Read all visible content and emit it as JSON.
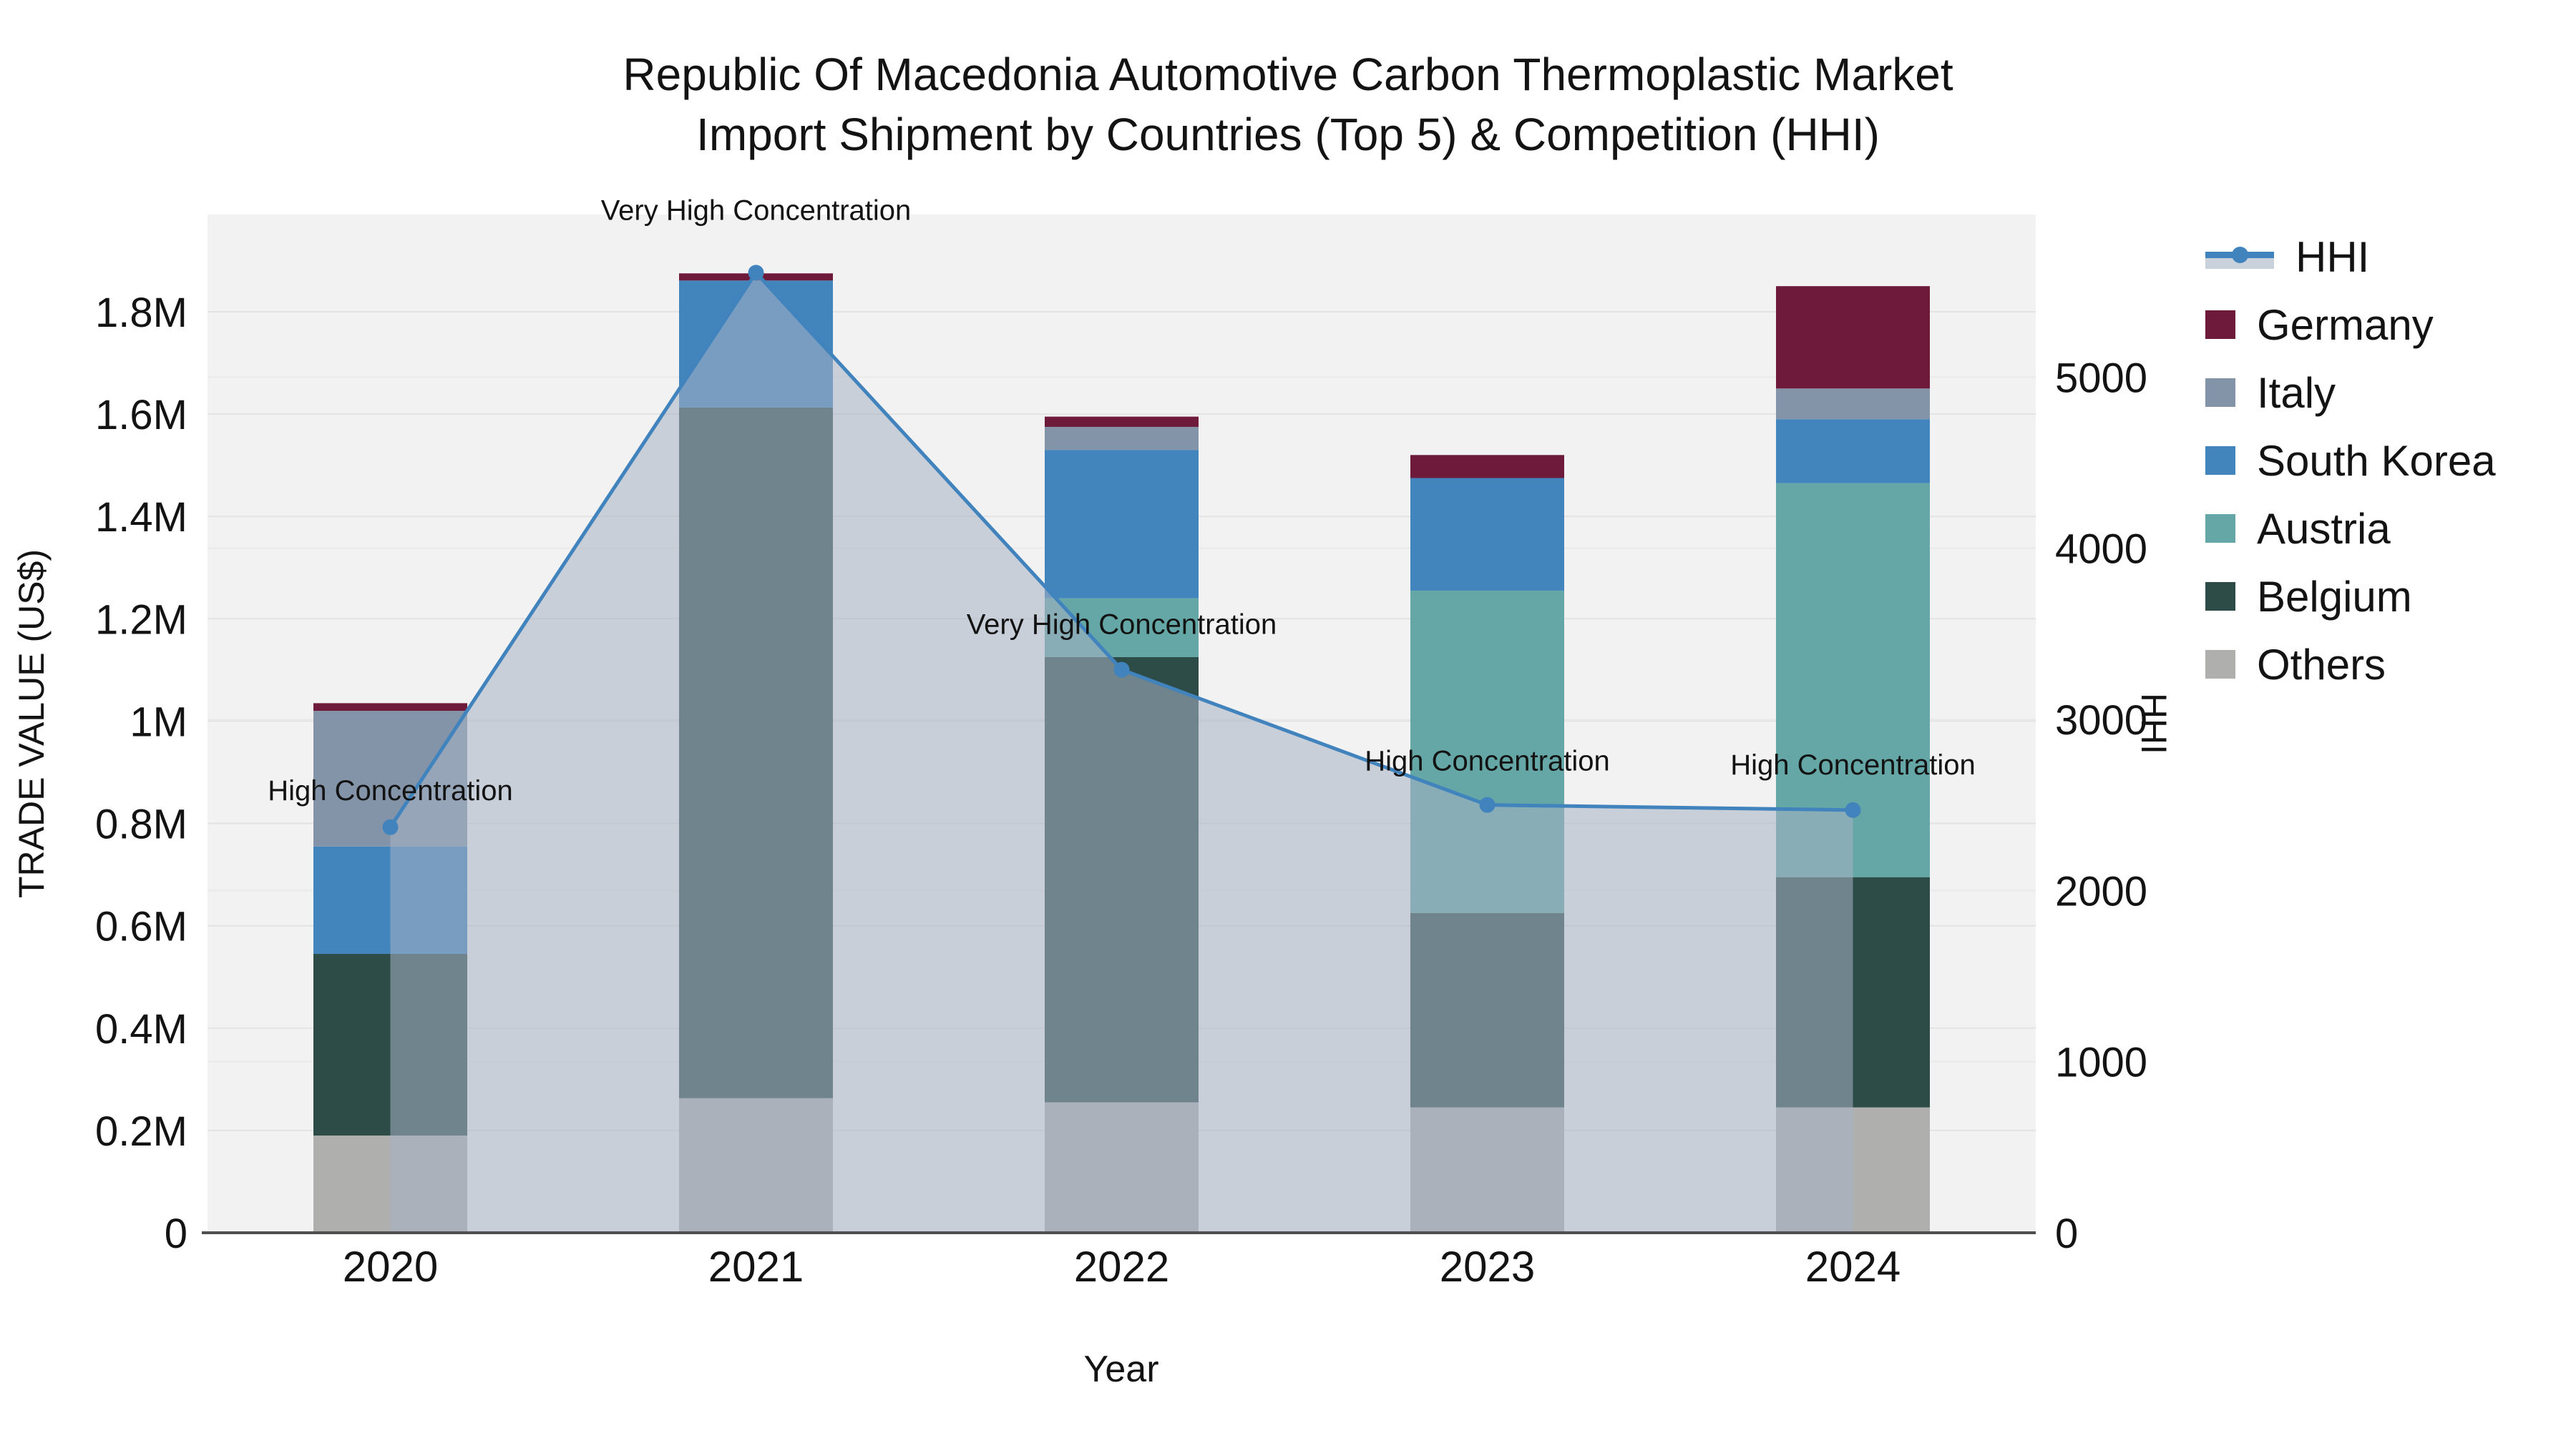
{
  "title": {
    "line1": "Republic Of Macedonia Automotive Carbon Thermoplastic Market",
    "line2": "Import Shipment by Countries (Top 5) & Competition (HHI)"
  },
  "axes": {
    "x": {
      "title": "Year",
      "categories": [
        "2020",
        "2021",
        "2022",
        "2023",
        "2024"
      ]
    },
    "y_left": {
      "title": "TRADE VALUE (US$)",
      "tick_labels": [
        "0",
        "0.2M",
        "0.4M",
        "0.6M",
        "0.8M",
        "1M",
        "1.2M",
        "1.4M",
        "1.6M",
        "1.8M"
      ],
      "tick_values": [
        0,
        200000,
        400000,
        600000,
        800000,
        1000000,
        1200000,
        1400000,
        1600000,
        1800000
      ],
      "range": [
        0,
        1990000
      ]
    },
    "y_right": {
      "title": "HHI",
      "tick_labels": [
        "0",
        "1000",
        "2000",
        "3000",
        "4000",
        "5000"
      ],
      "tick_values": [
        0,
        1000,
        2000,
        3000,
        4000,
        5000
      ],
      "range": [
        0,
        5950
      ]
    }
  },
  "chart_data": {
    "type": "stacked-bar+line",
    "categories": [
      "2020",
      "2021",
      "2022",
      "2023",
      "2024"
    ],
    "stack_order_note": "series listed bottom-to-top of stack; values in US$",
    "series": [
      {
        "name": "Others",
        "color": "#AFB0AE",
        "values": [
          190000,
          263000,
          255000,
          245000,
          245000
        ]
      },
      {
        "name": "Belgium",
        "color": "#2D4C48",
        "values": [
          355000,
          1350000,
          870000,
          380000,
          450000
        ]
      },
      {
        "name": "Austria",
        "color": "#64A7A6",
        "values": [
          0,
          0,
          115000,
          630000,
          770000
        ]
      },
      {
        "name": "South Korea",
        "color": "#4284BC",
        "values": [
          210000,
          248000,
          290000,
          220000,
          125000
        ]
      },
      {
        "name": "Italy",
        "color": "#8494A8",
        "values": [
          265000,
          0,
          45000,
          0,
          60000
        ]
      },
      {
        "name": "Germany",
        "color": "#6E1B3B",
        "values": [
          15000,
          14000,
          20000,
          45000,
          200000
        ]
      }
    ],
    "line_series": {
      "name": "HHI",
      "axis": "y_right",
      "color": "#4183BD",
      "area_fill": "rgba(165,178,197,0.55)",
      "values": [
        2370,
        5610,
        3290,
        2500,
        2470
      ]
    },
    "annotations": [
      {
        "category": "2020",
        "text": "High Concentration",
        "dy": -38
      },
      {
        "category": "2021",
        "text": "Very High Concentration",
        "dy": -74
      },
      {
        "category": "2022",
        "text": "Very High Concentration",
        "dy": -50
      },
      {
        "category": "2023",
        "text": "High Concentration",
        "dy": -48
      },
      {
        "category": "2024",
        "text": "High Concentration",
        "dy": -50
      }
    ],
    "grid": true,
    "legend_position": "right"
  },
  "legend": {
    "items": [
      {
        "label": "HHI",
        "type": "line"
      },
      {
        "label": "Germany",
        "type": "box"
      },
      {
        "label": "Italy",
        "type": "box"
      },
      {
        "label": "South Korea",
        "type": "box"
      },
      {
        "label": "Austria",
        "type": "box"
      },
      {
        "label": "Belgium",
        "type": "box"
      },
      {
        "label": "Others",
        "type": "box"
      }
    ]
  },
  "colors": {
    "plot_bg": "#F2F2F2",
    "grid_left": "#E3E3E3",
    "grid_right": "#EAEAEA",
    "axis_line": "#4F4F4F",
    "text": "#131313"
  }
}
